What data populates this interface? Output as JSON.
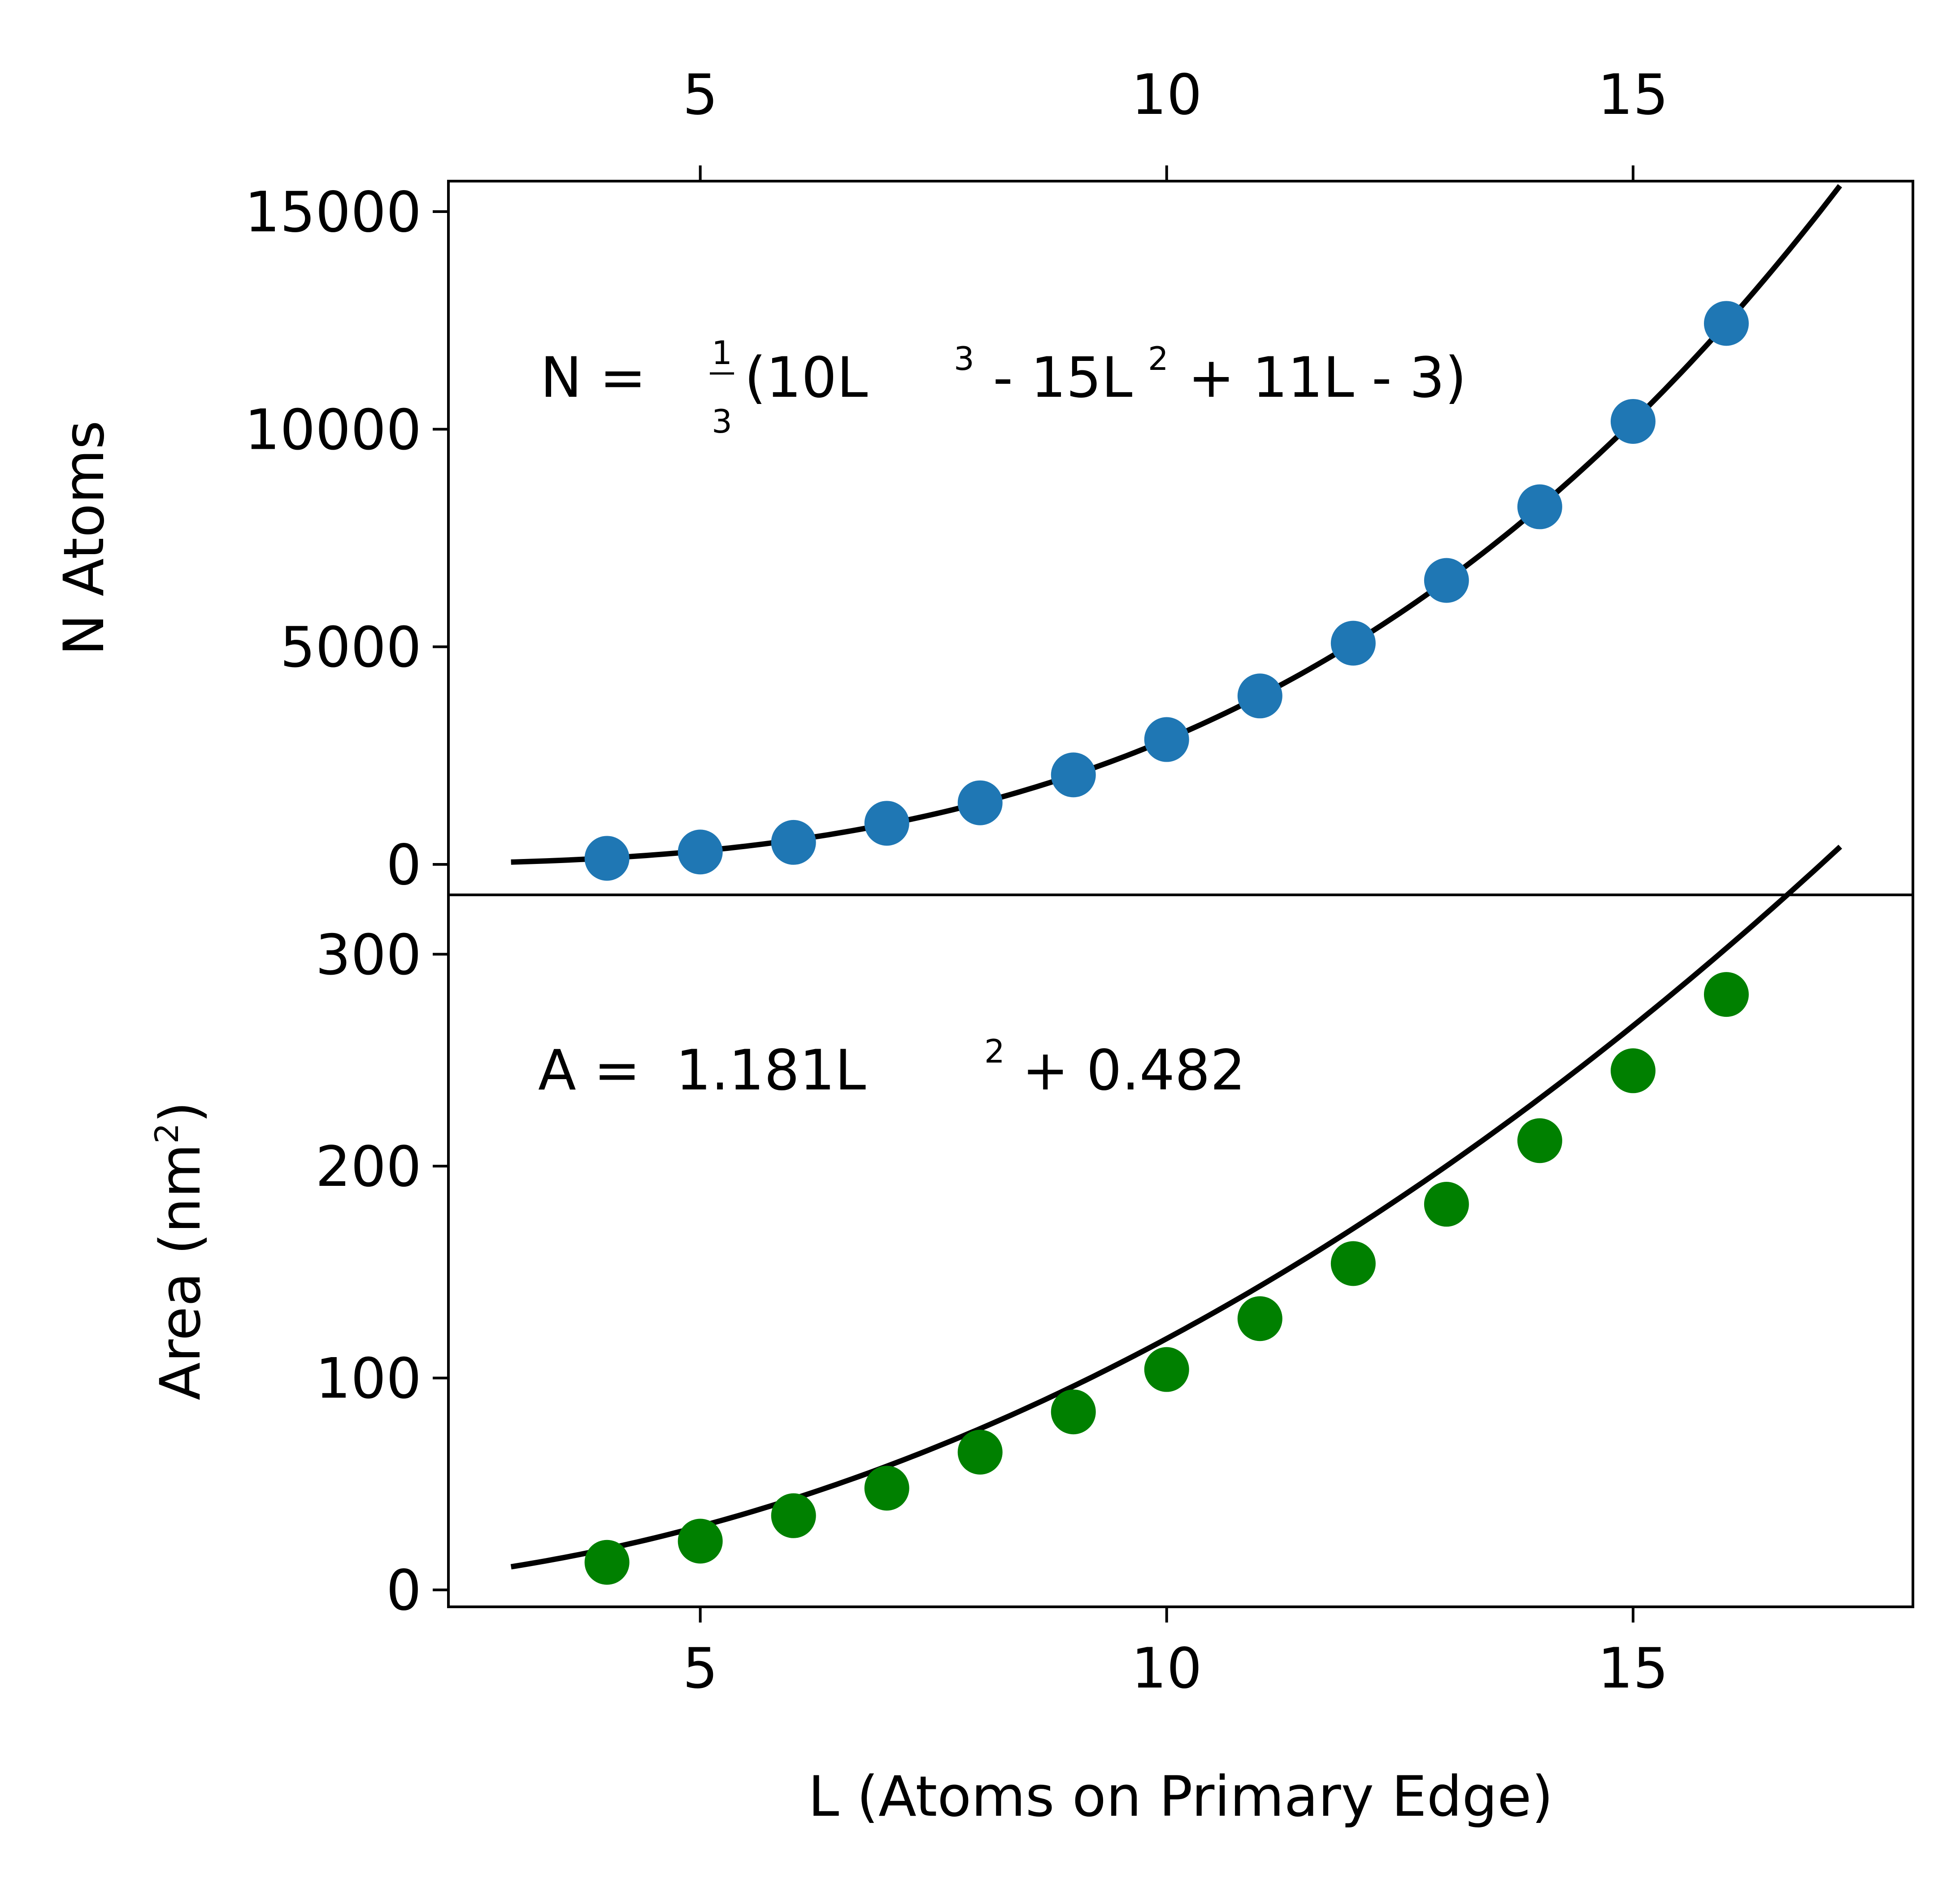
{
  "chart_data": [
    {
      "type": "scatter",
      "panel": "top",
      "ylabel": "N Atoms",
      "xlabel": "",
      "xlim": [
        2.3,
        18.0
      ],
      "ylim": [
        -700,
        15700
      ],
      "x_ticks": [
        5,
        10,
        15
      ],
      "y_ticks": [
        0,
        5000,
        10000,
        15000
      ],
      "x_ticks_on_top": true,
      "grid": false,
      "marker_color": "#1f77b4",
      "fit_color": "#000000",
      "series": [
        {
          "x": [
            4,
            5,
            6,
            7,
            8,
            9,
            10,
            11,
            12,
            13,
            14,
            15,
            16
          ],
          "y": [
            140,
            285,
            506,
            945,
            1415,
            2057,
            2869,
            3871,
            5083,
            6525,
            8217,
            10179,
            12431
          ]
        }
      ],
      "fit": {
        "coefficients": [
          10,
          -15,
          11,
          -3
        ],
        "scale": 0.3333333,
        "x_range": [
          3,
          17.2
        ]
      },
      "annotation": {
        "lhs": "N = ",
        "frac_num": "1",
        "frac_den": "3",
        "open": "(10L",
        "exp1": "3",
        "mid": " - 15L",
        "exp2": "2",
        "tail": " + 11L - 3)"
      }
    },
    {
      "type": "scatter",
      "panel": "bottom",
      "ylabel_main": "Area (nm",
      "ylabel_exp": "2",
      "ylabel_close": ")",
      "xlabel": "L (Atoms on Primary Edge)",
      "xlim": [
        2.3,
        18.0
      ],
      "ylim": [
        -8,
        328
      ],
      "x_ticks": [
        5,
        10,
        15
      ],
      "y_ticks": [
        0,
        100,
        200,
        300
      ],
      "grid": false,
      "marker_color": "#008000",
      "fit_color": "#000000",
      "series": [
        {
          "x": [
            4,
            5,
            6,
            7,
            8,
            9,
            10,
            11,
            12,
            13,
            14,
            15,
            16
          ],
          "y": [
            13,
            23,
            35,
            48,
            65,
            84,
            104,
            128,
            154,
            182,
            212,
            245,
            281
          ]
        }
      ],
      "fit": {
        "coefficients": [
          1.181,
          0,
          0.482
        ],
        "x_range": [
          3,
          17.2
        ]
      },
      "annotation": {
        "lhs": "A =  1.181L",
        "exp": "2",
        "tail": " + 0.482"
      }
    }
  ]
}
